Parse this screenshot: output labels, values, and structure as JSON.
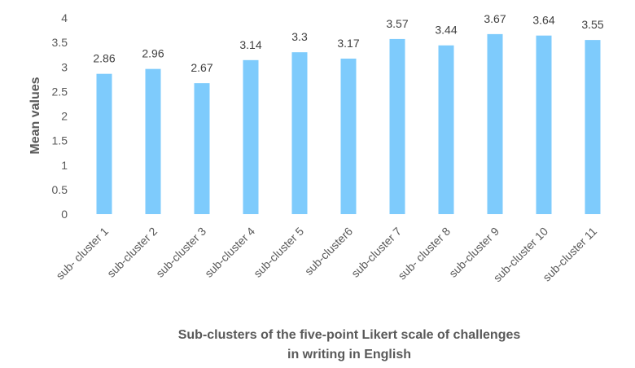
{
  "chart_data": {
    "type": "bar",
    "title": "",
    "xlabel_lines": [
      "Sub-clusters of the five-point Likert scale of challenges",
      "in writing in English"
    ],
    "ylabel": "Mean values",
    "categories": [
      "sub- cluster 1",
      "sub-cluster 2",
      "sub-cluster 3",
      "sub-cluster 4",
      "sub-cluster 5",
      "sub-cluster6",
      "sub-cluster 7",
      "sub- cluster 8",
      "sub-cluster 9",
      "sub-cluster 10",
      "sub-cluster 11"
    ],
    "values": [
      2.86,
      2.96,
      2.67,
      3.14,
      3.3,
      3.17,
      3.57,
      3.44,
      3.67,
      3.64,
      3.55
    ],
    "value_labels": [
      "2.86",
      "2.96",
      "2.67",
      "3.14",
      "3.3",
      "3.17",
      "3.57",
      "3.44",
      "3.67",
      "3.64",
      "3.55"
    ],
    "yticks": [
      "0",
      "0.5",
      "1",
      "1.5",
      "2",
      "2.5",
      "3",
      "3.5",
      "4"
    ],
    "ylim": [
      0,
      4
    ],
    "grid": false,
    "legend": "none",
    "bar_color": "#7ecbfc"
  }
}
